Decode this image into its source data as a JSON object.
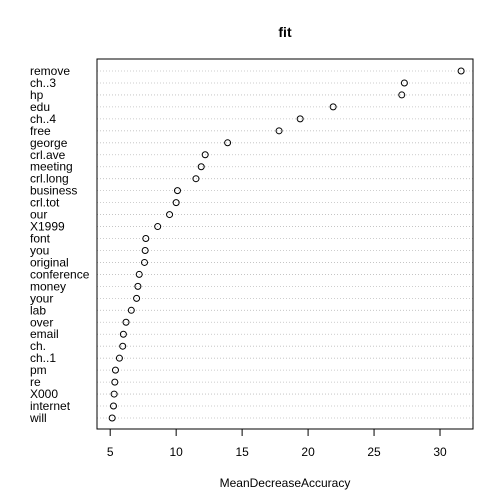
{
  "chart_data": {
    "type": "scatter",
    "title": "fit",
    "xlabel": "MeanDecreaseAccuracy",
    "ylabel": "",
    "xlim": [
      4.0,
      32.5
    ],
    "x_ticks": [
      5,
      10,
      15,
      20,
      25,
      30
    ],
    "grid": "dotted horizontal lines per category",
    "categories": [
      "remove",
      "ch..3",
      "hp",
      "edu",
      "ch..4",
      "free",
      "george",
      "crl.ave",
      "meeting",
      "crl.long",
      "business",
      "crl.tot",
      "our",
      "X1999",
      "font",
      "you",
      "original",
      "conference",
      "money",
      "your",
      "lab",
      "over",
      "email",
      "ch.",
      "ch..1",
      "pm",
      "re",
      "X000",
      "internet",
      "will"
    ],
    "values": [
      31.6,
      27.3,
      27.1,
      21.9,
      19.4,
      17.8,
      13.9,
      12.2,
      11.9,
      11.5,
      10.1,
      10.0,
      9.5,
      8.6,
      7.7,
      7.65,
      7.6,
      7.2,
      7.1,
      7.0,
      6.6,
      6.2,
      6.0,
      5.95,
      5.7,
      5.4,
      5.35,
      5.3,
      5.25,
      5.15
    ]
  }
}
